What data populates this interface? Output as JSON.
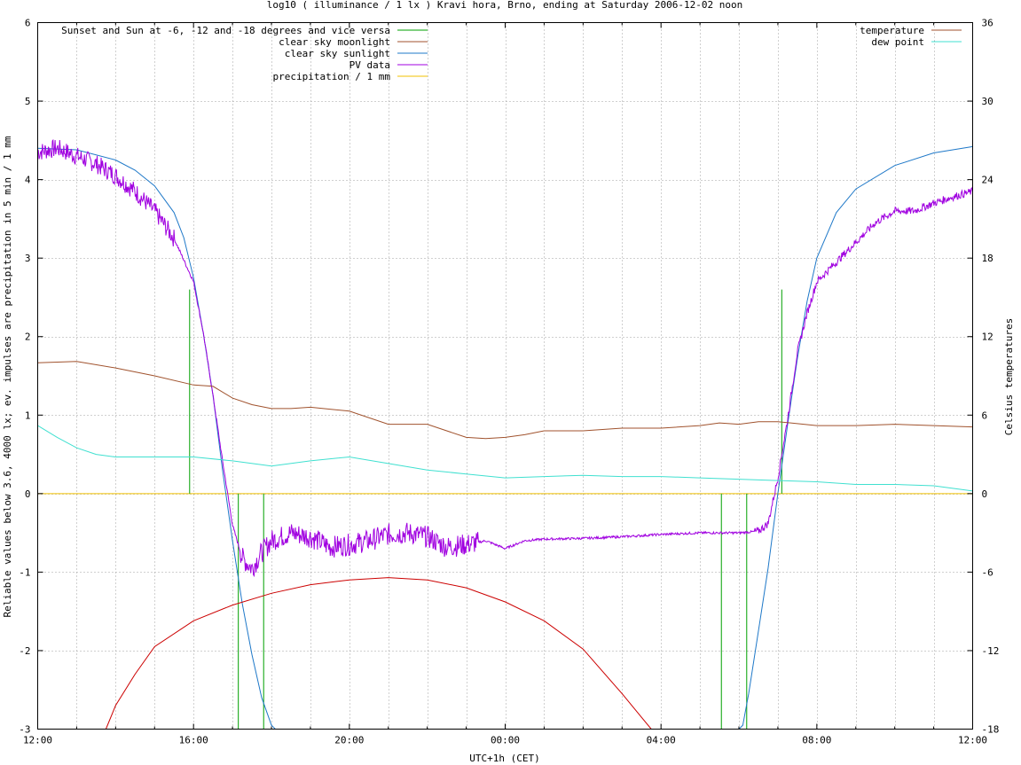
{
  "chart_data": {
    "type": "line",
    "title": "log10 ( illuminance / 1 lx ) Kravi hora, Brno, ending at Saturday 2006-12-02 noon",
    "xlabel": "UTC+1h (CET)",
    "ylabel": "Reliable values below 3.6, 4000 lx; ev. impulses are precipitation in 5 min / 1 mm",
    "y2label": "Celsius temperatures",
    "xlim": [
      0,
      24
    ],
    "ylim": [
      -3,
      6
    ],
    "y2lim": [
      -18,
      36
    ],
    "grid": true,
    "x_ticks": [
      {
        "v": 0,
        "label": "12:00"
      },
      {
        "v": 4,
        "label": "16:00"
      },
      {
        "v": 8,
        "label": "20:00"
      },
      {
        "v": 12,
        "label": "00:00"
      },
      {
        "v": 16,
        "label": "04:00"
      },
      {
        "v": 20,
        "label": "08:00"
      },
      {
        "v": 24,
        "label": "12:00"
      }
    ],
    "y_ticks": [
      {
        "v": -3,
        "label": "-3"
      },
      {
        "v": -2,
        "label": "-2"
      },
      {
        "v": -1,
        "label": "-1"
      },
      {
        "v": 0,
        "label": "0"
      },
      {
        "v": 1,
        "label": "1"
      },
      {
        "v": 2,
        "label": "2"
      },
      {
        "v": 3,
        "label": "3"
      },
      {
        "v": 4,
        "label": "4"
      },
      {
        "v": 5,
        "label": "5"
      },
      {
        "v": 6,
        "label": "6"
      }
    ],
    "y2_ticks": [
      {
        "v": -18,
        "label": "-18"
      },
      {
        "v": -12,
        "label": "-12"
      },
      {
        "v": -6,
        "label": "-6"
      },
      {
        "v": 0,
        "label": "0"
      },
      {
        "v": 6,
        "label": "6"
      },
      {
        "v": 12,
        "label": "12"
      },
      {
        "v": 18,
        "label": "18"
      },
      {
        "v": 24,
        "label": "24"
      },
      {
        "v": 30,
        "label": "30"
      },
      {
        "v": 36,
        "label": "36"
      }
    ],
    "legend_left": [
      {
        "name": "Sunset and Sun at -6, -12 and -18 degrees and vice versa",
        "color": "#00a000"
      },
      {
        "name": "clear sky moonlight",
        "color": "#a0522d"
      },
      {
        "name": "clear sky sunlight",
        "color": "#1e78c8"
      },
      {
        "name": "PV data",
        "color": "#a000e0"
      },
      {
        "name": "precipitation / 1 mm",
        "color": "#f0c000"
      }
    ],
    "legend_right": [
      {
        "name": "temperature",
        "color": "#a0522d"
      },
      {
        "name": "dew point",
        "color": "#40e0d0"
      }
    ],
    "series": [
      {
        "name": "clear sky sunlight",
        "color": "#1e78c8",
        "axis": "y1",
        "x": [
          0,
          1,
          2,
          2.5,
          3,
          3.5,
          3.75,
          4,
          4.25,
          4.5,
          4.75,
          5,
          5.25,
          5.5,
          5.75,
          6,
          6.1,
          18,
          18.1,
          18.25,
          18.5,
          18.75,
          19,
          19.25,
          19.5,
          19.75,
          20,
          20.5,
          21,
          22,
          23,
          24
        ],
        "y": [
          4.4,
          4.38,
          4.25,
          4.12,
          3.92,
          3.58,
          3.26,
          2.75,
          2.05,
          1.25,
          0.28,
          -0.6,
          -1.4,
          -2.05,
          -2.6,
          -2.95,
          -3.0,
          -3.0,
          -2.95,
          -2.55,
          -1.75,
          -0.95,
          0.0,
          0.88,
          1.72,
          2.45,
          3.0,
          3.58,
          3.88,
          4.18,
          4.34,
          4.42
        ]
      },
      {
        "name": "clear sky moonlight",
        "color": "#cc0000",
        "axis": "y1",
        "x": [
          1.75,
          2,
          2.5,
          3,
          4,
          5,
          6,
          7,
          8,
          9,
          10,
          11,
          12,
          13,
          14,
          15,
          15.5,
          15.75
        ],
        "y": [
          -3.0,
          -2.7,
          -2.3,
          -1.95,
          -1.62,
          -1.42,
          -1.27,
          -1.16,
          -1.1,
          -1.07,
          -1.1,
          -1.2,
          -1.38,
          -1.62,
          -1.98,
          -2.55,
          -2.85,
          -3.0
        ]
      },
      {
        "name": "PV data",
        "color": "#a000e0",
        "axis": "y1",
        "noise": true,
        "x": [
          0,
          0.5,
          1,
          1.5,
          2,
          2.5,
          3,
          3.5,
          4,
          4.25,
          4.5,
          4.75,
          5,
          5.25,
          5.5,
          5.75,
          6,
          6.5,
          7,
          7.5,
          8,
          8.5,
          9,
          9.5,
          10,
          10.5,
          11,
          11.5,
          12,
          12.5,
          13,
          14,
          15,
          16,
          17,
          18,
          18.5,
          18.75,
          19,
          19.25,
          19.5,
          19.75,
          20,
          20.5,
          21,
          21.5,
          22,
          22.5,
          23,
          23.5,
          24
        ],
        "y": [
          4.35,
          4.4,
          4.3,
          4.2,
          4.05,
          3.85,
          3.6,
          3.25,
          2.7,
          2.05,
          1.25,
          0.4,
          -0.4,
          -0.82,
          -0.95,
          -0.75,
          -0.6,
          -0.5,
          -0.55,
          -0.68,
          -0.65,
          -0.6,
          -0.52,
          -0.5,
          -0.55,
          -0.68,
          -0.65,
          -0.6,
          -0.7,
          -0.6,
          -0.58,
          -0.57,
          -0.55,
          -0.52,
          -0.5,
          -0.5,
          -0.48,
          -0.38,
          0.2,
          0.95,
          1.8,
          2.3,
          2.7,
          2.95,
          3.2,
          3.45,
          3.6,
          3.6,
          3.7,
          3.78,
          3.85
        ]
      },
      {
        "name": "temperature",
        "color": "#a0522d",
        "axis": "y2",
        "x": [
          0,
          1,
          2,
          3,
          4,
          4.5,
          5,
          5.5,
          6,
          6.5,
          7,
          8,
          9,
          10,
          11,
          11.5,
          12,
          12.5,
          13,
          14,
          15,
          16,
          17,
          17.5,
          18,
          18.5,
          19,
          20,
          21,
          22,
          23,
          24
        ],
        "y": [
          10.0,
          10.1,
          9.6,
          9.0,
          8.3,
          8.2,
          7.3,
          6.8,
          6.5,
          6.5,
          6.6,
          6.3,
          5.3,
          5.3,
          4.3,
          4.2,
          4.3,
          4.5,
          4.8,
          4.8,
          5.0,
          5.0,
          5.2,
          5.4,
          5.3,
          5.5,
          5.5,
          5.2,
          5.2,
          5.3,
          5.2,
          5.1
        ]
      },
      {
        "name": "dew point",
        "color": "#40e0d0",
        "axis": "y2",
        "x": [
          0,
          0.5,
          1,
          1.5,
          2,
          3,
          4,
          5,
          6,
          7,
          8,
          9,
          10,
          11,
          12,
          13,
          14,
          15,
          16,
          17,
          18,
          19,
          20,
          21,
          22,
          23,
          24
        ],
        "y": [
          5.2,
          4.3,
          3.5,
          3.0,
          2.8,
          2.8,
          2.8,
          2.5,
          2.1,
          2.5,
          2.8,
          2.3,
          1.8,
          1.5,
          1.2,
          1.3,
          1.4,
          1.3,
          1.3,
          1.2,
          1.1,
          1.0,
          0.9,
          0.7,
          0.7,
          0.6,
          0.2
        ]
      }
    ],
    "impulses": {
      "name": "Sunset and Sun at -6, -12 and -18 degrees and vice versa",
      "color": "#00a000",
      "x": [
        3.9,
        5.15,
        5.8,
        17.55,
        18.2,
        19.1
      ],
      "y": [
        2.6,
        -3.0,
        -3.0,
        -3.0,
        -3.0,
        2.6
      ]
    },
    "precipitation": {
      "name": "precipitation / 1 mm",
      "color": "#f0c000",
      "x": [
        0,
        24
      ],
      "y": [
        0,
        0
      ]
    }
  }
}
